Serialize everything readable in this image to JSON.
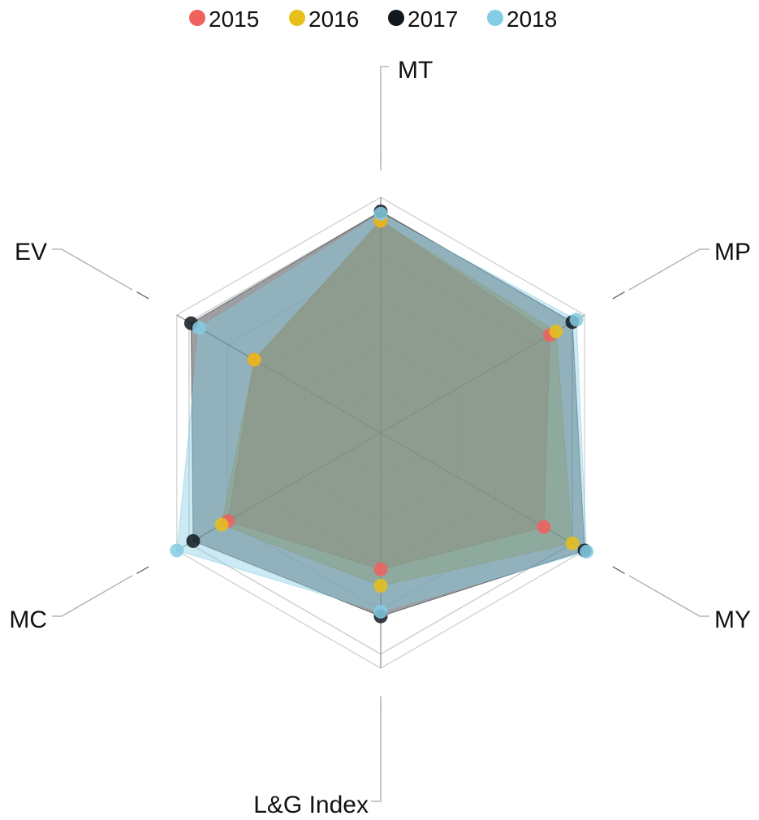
{
  "chart_data": {
    "type": "radar",
    "axes": [
      "MT",
      "MP",
      "MY",
      "L&G Index",
      "MC",
      "EV"
    ],
    "rlim": [
      0,
      100
    ],
    "legend_position": "top-center",
    "series": [
      {
        "name": "2015",
        "color": "#F0625E",
        "values": [
          90,
          83,
          80,
          58,
          75,
          62
        ]
      },
      {
        "name": "2016",
        "color": "#E7C01A",
        "values": [
          90,
          86,
          94,
          65,
          78,
          62
        ]
      },
      {
        "name": "2017",
        "color": "#12191E",
        "values": [
          94,
          94,
          100,
          78,
          92,
          93
        ]
      },
      {
        "name": "2018",
        "color": "#84CDE4",
        "values": [
          93,
          96,
          101,
          76,
          100,
          89
        ]
      }
    ]
  }
}
